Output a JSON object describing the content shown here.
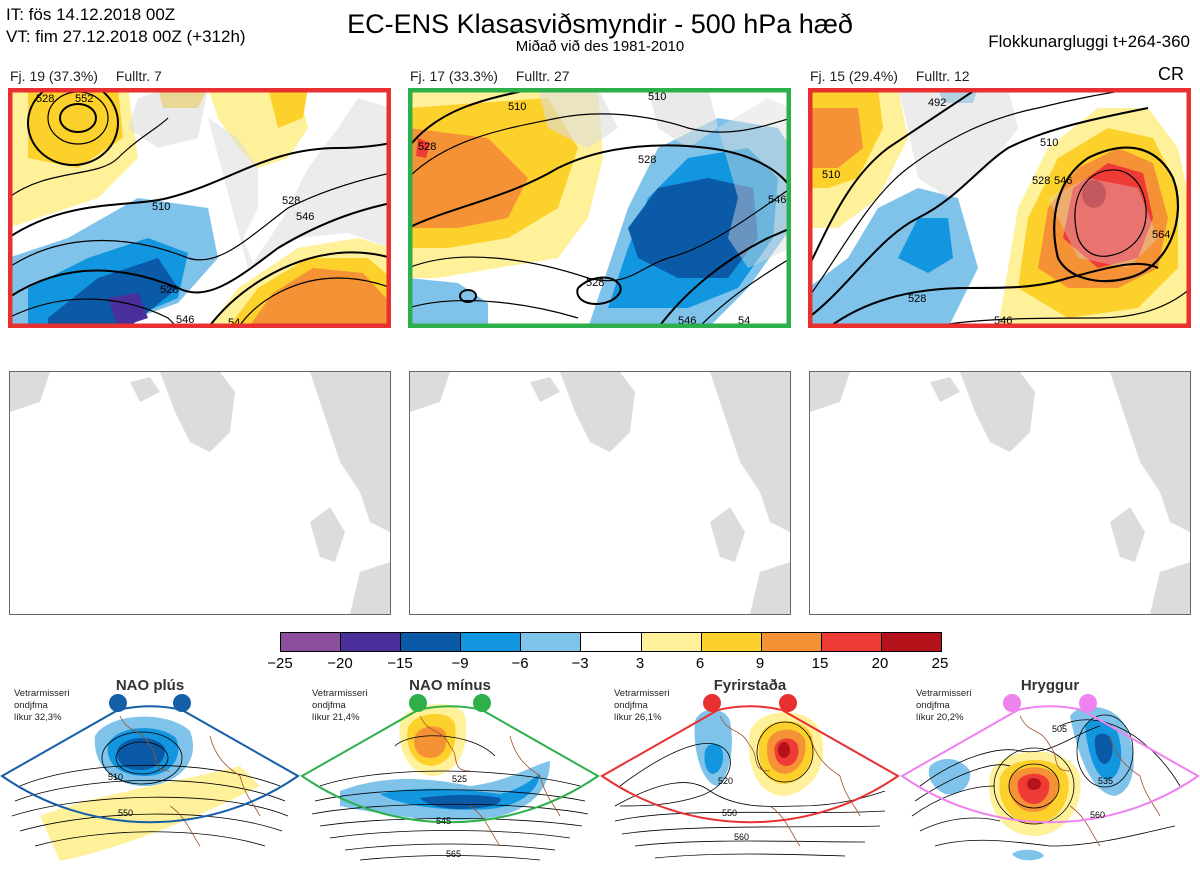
{
  "header": {
    "it_line": "IT: fös 14.12.2018 00Z",
    "vt_line": "VT: fim 27.12.2018 00Z  (+312h)",
    "title": "EC-ENS Klasasviðsmyndir - 500 hPa hæð",
    "subtitle": "Miðað við des 1981-2010",
    "window": "Flokkunargluggi t+264-360",
    "code": "CR"
  },
  "panels": [
    {
      "count": "Fj. 19 (37.3%)",
      "rep": "Fulltr. 7",
      "border_color": "#e83030"
    },
    {
      "count": "Fj. 17 (33.3%)",
      "rep": "Fulltr. 27",
      "border_color": "#2db04b"
    },
    {
      "count": "Fj. 15 (29.4%)",
      "rep": "Fulltr. 12",
      "border_color": "#e83030"
    }
  ],
  "contour_labels": {
    "p1": [
      "528",
      "552",
      "510",
      "528",
      "546",
      "528",
      "546",
      "54"
    ],
    "p2": [
      "510",
      "528",
      "528",
      "510",
      "546",
      "54",
      "528",
      "546"
    ],
    "p3": [
      "492",
      "510",
      "528",
      "546",
      "564",
      "528",
      "546",
      "510"
    ]
  },
  "colorbar": {
    "ticks": [
      "−25",
      "−20",
      "−15",
      "−9",
      "−6",
      "−3",
      "3",
      "6",
      "9",
      "15",
      "20",
      "25"
    ],
    "colors": [
      "#8b4f9e",
      "#4b2f9a",
      "#0a5aa8",
      "#1196df",
      "#7fc3ea",
      "#ffffff",
      "#fff199",
      "#fdd12b",
      "#f59236",
      "#ee3b35",
      "#b5131c"
    ]
  },
  "regimes": [
    {
      "name": "NAO plús",
      "info": [
        "Vetrarmisseri",
        "ondjfma",
        "líkur 32,3%"
      ],
      "color": "#155ea8",
      "labels": [
        "510",
        "550"
      ]
    },
    {
      "name": "NAO mínus",
      "info": [
        "Vetrarmisseri",
        "ondjfma",
        "líkur 21,4%"
      ],
      "color": "#2db04b",
      "labels": [
        "525",
        "545",
        "565"
      ]
    },
    {
      "name": "Fyrirstaða",
      "info": [
        "Vetrarmisseri",
        "ondjfma",
        "líkur 26,1%"
      ],
      "color": "#e83030",
      "labels": [
        "520",
        "550",
        "560"
      ]
    },
    {
      "name": "Hryggur",
      "info": [
        "Vetrarmisseri",
        "ondjfma",
        "líkur 20,2%"
      ],
      "color": "#ee82ee",
      "labels": [
        "505",
        "535",
        "560"
      ]
    }
  ]
}
